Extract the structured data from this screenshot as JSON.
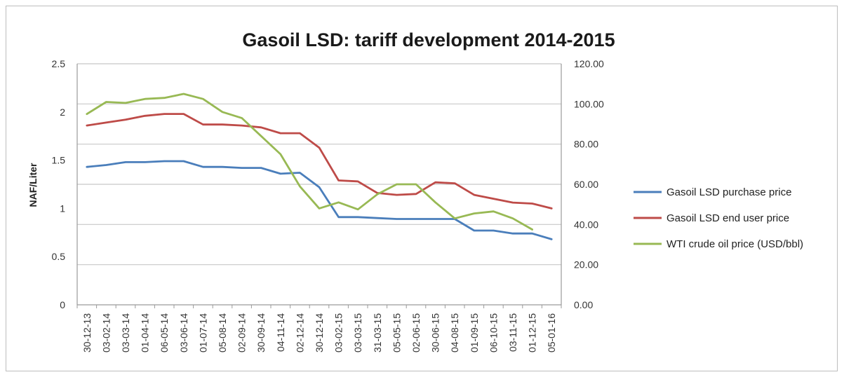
{
  "chart_data": {
    "type": "line",
    "title": "Gasoil LSD: tariff development 2014-2015",
    "ylabel": "NAF/Liter",
    "ylabel_right": "",
    "xlabel": "",
    "ylim": [
      0,
      2.5
    ],
    "ylim_right": [
      0,
      120
    ],
    "y_ticks": [
      "0",
      "0.5",
      "1",
      "1.5",
      "2",
      "2.5"
    ],
    "y_ticks_right": [
      "0.00",
      "20.00",
      "40.00",
      "60.00",
      "80.00",
      "100.00",
      "120.00"
    ],
    "grid": true,
    "legend_position": "right",
    "categories": [
      "30-12-13",
      "03-02-14",
      "03-03-14",
      "01-04-14",
      "06-05-14",
      "03-06-14",
      "01-07-14",
      "05-08-14",
      "02-09-14",
      "30-09-14",
      "04-11-14",
      "02-12-14",
      "30-12-14",
      "03-02-15",
      "03-03-15",
      "31-03-15",
      "05-05-15",
      "02-06-15",
      "30-06-15",
      "04-08-15",
      "01-09-15",
      "06-10-15",
      "03-11-15",
      "01-12-15",
      "05-01-16"
    ],
    "series": [
      {
        "name": "Gasoil LSD purchase price",
        "axis": "left",
        "color": "#4a7ebb",
        "values": [
          1.43,
          1.45,
          1.48,
          1.48,
          1.49,
          1.49,
          1.43,
          1.43,
          1.42,
          1.42,
          1.36,
          1.37,
          1.22,
          0.91,
          0.91,
          0.9,
          0.89,
          0.89,
          0.89,
          0.89,
          0.77,
          0.77,
          0.74,
          0.74,
          0.68
        ]
      },
      {
        "name": "Gasoil LSD end user price",
        "axis": "left",
        "color": "#be4b48",
        "values": [
          1.86,
          1.89,
          1.92,
          1.96,
          1.98,
          1.98,
          1.87,
          1.87,
          1.86,
          1.84,
          1.78,
          1.78,
          1.63,
          1.29,
          1.28,
          1.16,
          1.14,
          1.15,
          1.27,
          1.26,
          1.14,
          1.1,
          1.06,
          1.05,
          1.0
        ]
      },
      {
        "name": "WTI crude oil price (USD/bbl)",
        "axis": "right",
        "color": "#98b954",
        "values": [
          95.0,
          101.0,
          100.5,
          102.5,
          103.0,
          105.0,
          102.5,
          96.0,
          93.0,
          84.0,
          75.0,
          59.0,
          48.0,
          51.0,
          47.5,
          55.0,
          60.0,
          60.0,
          51.0,
          43.0,
          45.5,
          46.5,
          43.0,
          37.5,
          null
        ]
      }
    ]
  }
}
